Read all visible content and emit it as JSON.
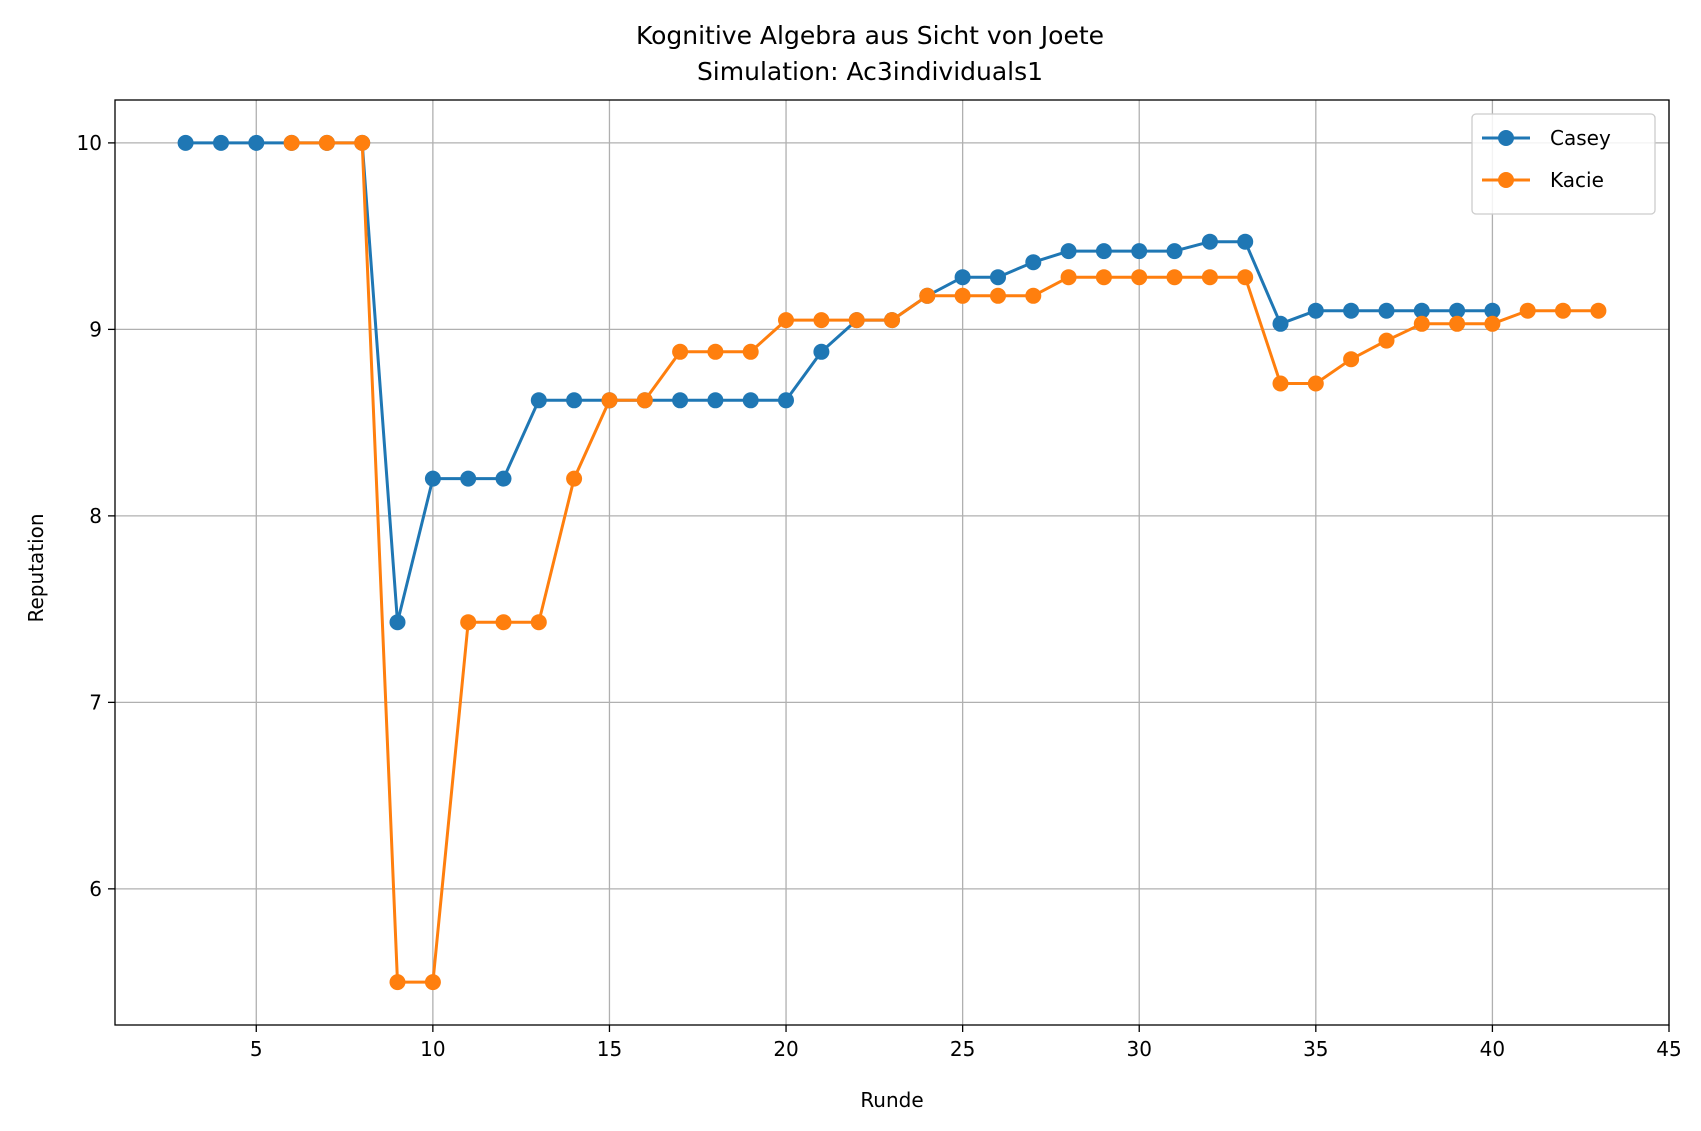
{
  "chart_data": {
    "type": "line",
    "title": "Kognitive Algebra aus Sicht von Joete",
    "subtitle": "Simulation: Ac3individuals1",
    "xlabel": "Runde",
    "ylabel": "Reputation",
    "xlim": [
      1,
      45
    ],
    "ylim": [
      5.27,
      10.23
    ],
    "xticks": [
      5,
      10,
      15,
      20,
      25,
      30,
      35,
      40,
      45
    ],
    "yticks": [
      6,
      7,
      8,
      9,
      10
    ],
    "grid": true,
    "legend_position": "top-right",
    "series": [
      {
        "name": "Casey",
        "color": "#1f77b4",
        "marker": "circle",
        "points": [
          [
            3,
            10.0
          ],
          [
            4,
            10.0
          ],
          [
            5,
            10.0
          ],
          [
            6,
            10.0
          ],
          [
            7,
            10.0
          ],
          [
            8,
            10.0
          ],
          [
            9,
            7.43
          ],
          [
            10,
            8.2
          ],
          [
            11,
            8.2
          ],
          [
            12,
            8.2
          ],
          [
            13,
            8.62
          ],
          [
            14,
            8.62
          ],
          [
            15,
            8.62
          ],
          [
            16,
            8.62
          ],
          [
            17,
            8.62
          ],
          [
            18,
            8.62
          ],
          [
            19,
            8.62
          ],
          [
            20,
            8.62
          ],
          [
            21,
            8.88
          ],
          [
            22,
            9.05
          ],
          [
            23,
            9.05
          ],
          [
            24,
            9.18
          ],
          [
            25,
            9.28
          ],
          [
            26,
            9.28
          ],
          [
            27,
            9.36
          ],
          [
            28,
            9.42
          ],
          [
            29,
            9.42
          ],
          [
            30,
            9.42
          ],
          [
            31,
            9.42
          ],
          [
            32,
            9.47
          ],
          [
            33,
            9.47
          ],
          [
            34,
            9.03
          ],
          [
            35,
            9.1
          ],
          [
            36,
            9.1
          ],
          [
            37,
            9.1
          ],
          [
            38,
            9.1
          ],
          [
            39,
            9.1
          ],
          [
            40,
            9.1
          ]
        ]
      },
      {
        "name": "Kacie",
        "color": "#ff7f0e",
        "marker": "circle",
        "points": [
          [
            6,
            10.0
          ],
          [
            7,
            10.0
          ],
          [
            8,
            10.0
          ],
          [
            9,
            5.5
          ],
          [
            10,
            5.5
          ],
          [
            11,
            7.43
          ],
          [
            12,
            7.43
          ],
          [
            13,
            7.43
          ],
          [
            14,
            8.2
          ],
          [
            15,
            8.62
          ],
          [
            16,
            8.62
          ],
          [
            17,
            8.88
          ],
          [
            18,
            8.88
          ],
          [
            19,
            8.88
          ],
          [
            20,
            9.05
          ],
          [
            21,
            9.05
          ],
          [
            22,
            9.05
          ],
          [
            23,
            9.05
          ],
          [
            24,
            9.18
          ],
          [
            25,
            9.18
          ],
          [
            26,
            9.18
          ],
          [
            27,
            9.18
          ],
          [
            28,
            9.28
          ],
          [
            29,
            9.28
          ],
          [
            30,
            9.28
          ],
          [
            31,
            9.28
          ],
          [
            32,
            9.28
          ],
          [
            33,
            9.28
          ],
          [
            34,
            8.71
          ],
          [
            35,
            8.71
          ],
          [
            36,
            8.84
          ],
          [
            37,
            8.94
          ],
          [
            38,
            9.03
          ],
          [
            39,
            9.03
          ],
          [
            40,
            9.03
          ],
          [
            41,
            9.1
          ],
          [
            42,
            9.1
          ],
          [
            43,
            9.1
          ]
        ]
      }
    ]
  }
}
